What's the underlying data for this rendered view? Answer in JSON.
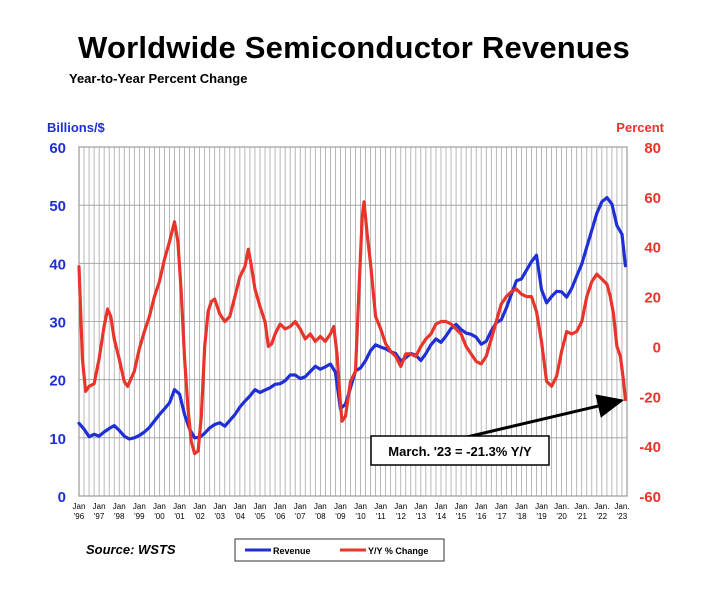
{
  "title": "Worldwide Semiconductor Revenues",
  "subtitle": "Year-to-Year Percent Change",
  "source": "Source: WSTS",
  "chart_data": {
    "type": "line",
    "colors": {
      "revenue": "#1f2fd6",
      "yoy": "#e8342a",
      "grid": "#9a9a9a",
      "annotation": "#000000"
    },
    "left_axis": {
      "label": "Billions/$",
      "min": 0,
      "max": 60,
      "step": 10,
      "ticks": [
        "0",
        "10",
        "20",
        "30",
        "40",
        "50",
        "60"
      ]
    },
    "right_axis": {
      "label": "Percent",
      "min": -60,
      "max": 80,
      "step": 20,
      "ticks": [
        "-60",
        "-40",
        "-20",
        "0",
        "20",
        "40",
        "60",
        "80"
      ]
    },
    "x_range": [
      1996,
      2023.25
    ],
    "x_ticks": [
      {
        "top": "Jan",
        "bottom": "'96",
        "x": 1996
      },
      {
        "top": "Jan",
        "bottom": "'97",
        "x": 1997
      },
      {
        "top": "Jan",
        "bottom": "'98",
        "x": 1998
      },
      {
        "top": "Jan",
        "bottom": "'99",
        "x": 1999
      },
      {
        "top": "Jan",
        "bottom": "'00",
        "x": 2000
      },
      {
        "top": "Jan",
        "bottom": "'01",
        "x": 2001
      },
      {
        "top": "Jan",
        "bottom": "'02",
        "x": 2002
      },
      {
        "top": "Jan",
        "bottom": "'03",
        "x": 2003
      },
      {
        "top": "Jan",
        "bottom": "'04",
        "x": 2004
      },
      {
        "top": "Jan",
        "bottom": "'05",
        "x": 2005
      },
      {
        "top": "Jan",
        "bottom": "'06",
        "x": 2006
      },
      {
        "top": "Jan",
        "bottom": "'07",
        "x": 2007
      },
      {
        "top": "Jan",
        "bottom": "'08",
        "x": 2008
      },
      {
        "top": "Jan",
        "bottom": "'09",
        "x": 2009
      },
      {
        "top": "Jan",
        "bottom": "'10",
        "x": 2010
      },
      {
        "top": "Jan",
        "bottom": "'11",
        "x": 2011
      },
      {
        "top": "Jan",
        "bottom": "'12",
        "x": 2012
      },
      {
        "top": "Jan",
        "bottom": "'13",
        "x": 2013
      },
      {
        "top": "Jan",
        "bottom": "'14",
        "x": 2014
      },
      {
        "top": "Jan",
        "bottom": "'15",
        "x": 2015
      },
      {
        "top": "Jan",
        "bottom": "'16",
        "x": 2016
      },
      {
        "top": "Jan",
        "bottom": "'17",
        "x": 2017
      },
      {
        "top": "Jan",
        "bottom": "'18",
        "x": 2018
      },
      {
        "top": "Jan",
        "bottom": "'19",
        "x": 2019
      },
      {
        "top": "Jan.",
        "bottom": "'20",
        "x": 2020
      },
      {
        "top": "Jan.",
        "bottom": "'21",
        "x": 2021
      },
      {
        "top": "Jan.",
        "bottom": "'22",
        "x": 2022
      },
      {
        "top": "Jan.",
        "bottom": "'23",
        "x": 2023
      }
    ],
    "series": [
      {
        "name": "Revenue",
        "axis": "left",
        "color": "#1f2fd6",
        "points": [
          [
            1996.0,
            12.5
          ],
          [
            1996.25,
            11.5
          ],
          [
            1996.5,
            10.2
          ],
          [
            1996.75,
            10.6
          ],
          [
            1997.0,
            10.3
          ],
          [
            1997.25,
            11.0
          ],
          [
            1997.5,
            11.6
          ],
          [
            1997.75,
            12.1
          ],
          [
            1998.0,
            11.3
          ],
          [
            1998.25,
            10.3
          ],
          [
            1998.5,
            9.8
          ],
          [
            1998.75,
            10.0
          ],
          [
            1999.0,
            10.4
          ],
          [
            1999.25,
            11.0
          ],
          [
            1999.5,
            11.8
          ],
          [
            1999.75,
            12.9
          ],
          [
            2000.0,
            14.0
          ],
          [
            2000.25,
            15.0
          ],
          [
            2000.5,
            16.0
          ],
          [
            2000.75,
            18.3
          ],
          [
            2001.0,
            17.5
          ],
          [
            2001.25,
            14.0
          ],
          [
            2001.5,
            11.5
          ],
          [
            2001.75,
            10.0
          ],
          [
            2002.0,
            10.1
          ],
          [
            2002.25,
            10.8
          ],
          [
            2002.5,
            11.7
          ],
          [
            2002.75,
            12.3
          ],
          [
            2003.0,
            12.6
          ],
          [
            2003.25,
            12.0
          ],
          [
            2003.5,
            13.0
          ],
          [
            2003.75,
            14.0
          ],
          [
            2004.0,
            15.3
          ],
          [
            2004.25,
            16.3
          ],
          [
            2004.5,
            17.2
          ],
          [
            2004.75,
            18.3
          ],
          [
            2005.0,
            17.8
          ],
          [
            2005.25,
            18.2
          ],
          [
            2005.5,
            18.6
          ],
          [
            2005.75,
            19.2
          ],
          [
            2006.0,
            19.3
          ],
          [
            2006.25,
            19.8
          ],
          [
            2006.5,
            20.8
          ],
          [
            2006.75,
            20.8
          ],
          [
            2007.0,
            20.2
          ],
          [
            2007.25,
            20.5
          ],
          [
            2007.5,
            21.4
          ],
          [
            2007.75,
            22.3
          ],
          [
            2008.0,
            21.8
          ],
          [
            2008.25,
            22.2
          ],
          [
            2008.5,
            22.7
          ],
          [
            2008.75,
            21.3
          ],
          [
            2009.0,
            15.0
          ],
          [
            2009.25,
            15.8
          ],
          [
            2009.5,
            18.6
          ],
          [
            2009.75,
            21.5
          ],
          [
            2010.0,
            22.0
          ],
          [
            2010.25,
            23.3
          ],
          [
            2010.5,
            25.0
          ],
          [
            2010.75,
            26.0
          ],
          [
            2011.0,
            25.6
          ],
          [
            2011.25,
            25.3
          ],
          [
            2011.5,
            24.8
          ],
          [
            2011.75,
            24.5
          ],
          [
            2012.0,
            23.2
          ],
          [
            2012.25,
            23.8
          ],
          [
            2012.5,
            24.5
          ],
          [
            2012.75,
            24.2
          ],
          [
            2013.0,
            23.3
          ],
          [
            2013.25,
            24.5
          ],
          [
            2013.5,
            26.0
          ],
          [
            2013.75,
            27.0
          ],
          [
            2014.0,
            26.4
          ],
          [
            2014.25,
            27.5
          ],
          [
            2014.5,
            28.8
          ],
          [
            2014.75,
            29.5
          ],
          [
            2015.0,
            28.6
          ],
          [
            2015.25,
            28.0
          ],
          [
            2015.5,
            27.8
          ],
          [
            2015.75,
            27.3
          ],
          [
            2016.0,
            26.1
          ],
          [
            2016.25,
            26.6
          ],
          [
            2016.5,
            28.4
          ],
          [
            2016.75,
            29.8
          ],
          [
            2017.0,
            30.3
          ],
          [
            2017.25,
            32.3
          ],
          [
            2017.5,
            34.7
          ],
          [
            2017.75,
            37.0
          ],
          [
            2018.0,
            37.3
          ],
          [
            2018.25,
            38.8
          ],
          [
            2018.5,
            40.3
          ],
          [
            2018.75,
            41.4
          ],
          [
            2019.0,
            35.5
          ],
          [
            2019.25,
            33.2
          ],
          [
            2019.5,
            34.3
          ],
          [
            2019.75,
            35.2
          ],
          [
            2020.0,
            35.1
          ],
          [
            2020.25,
            34.2
          ],
          [
            2020.5,
            35.7
          ],
          [
            2020.75,
            37.8
          ],
          [
            2021.0,
            39.9
          ],
          [
            2021.25,
            42.8
          ],
          [
            2021.5,
            45.7
          ],
          [
            2021.75,
            48.6
          ],
          [
            2022.0,
            50.6
          ],
          [
            2022.25,
            51.3
          ],
          [
            2022.5,
            50.2
          ],
          [
            2022.75,
            46.5
          ],
          [
            2023.0,
            45.0
          ],
          [
            2023.17,
            39.6
          ]
        ]
      },
      {
        "name": "Y/Y % Change",
        "axis": "right",
        "color": "#e8342a",
        "points": [
          [
            1996.0,
            32.0
          ],
          [
            1996.17,
            -5.0
          ],
          [
            1996.33,
            -18.0
          ],
          [
            1996.5,
            -16.0
          ],
          [
            1996.75,
            -15.0
          ],
          [
            1997.0,
            -5.0
          ],
          [
            1997.25,
            8.0
          ],
          [
            1997.42,
            15.0
          ],
          [
            1997.58,
            12.0
          ],
          [
            1997.75,
            3.0
          ],
          [
            1998.0,
            -5.0
          ],
          [
            1998.25,
            -14.0
          ],
          [
            1998.42,
            -16.0
          ],
          [
            1998.75,
            -10.0
          ],
          [
            1999.0,
            -1.0
          ],
          [
            1999.25,
            6.0
          ],
          [
            1999.5,
            12.0
          ],
          [
            1999.75,
            20.0
          ],
          [
            2000.0,
            26.0
          ],
          [
            2000.25,
            35.0
          ],
          [
            2000.5,
            42.0
          ],
          [
            2000.75,
            50.0
          ],
          [
            2000.92,
            42.0
          ],
          [
            2001.08,
            22.0
          ],
          [
            2001.25,
            -5.0
          ],
          [
            2001.42,
            -25.0
          ],
          [
            2001.58,
            -38.0
          ],
          [
            2001.75,
            -43.0
          ],
          [
            2001.92,
            -42.0
          ],
          [
            2002.08,
            -28.0
          ],
          [
            2002.25,
            0.0
          ],
          [
            2002.42,
            14.0
          ],
          [
            2002.58,
            18.0
          ],
          [
            2002.75,
            19.0
          ],
          [
            2003.0,
            13.0
          ],
          [
            2003.25,
            10.0
          ],
          [
            2003.5,
            12.0
          ],
          [
            2003.75,
            20.0
          ],
          [
            2004.0,
            28.0
          ],
          [
            2004.25,
            32.0
          ],
          [
            2004.42,
            39.0
          ],
          [
            2004.58,
            32.0
          ],
          [
            2004.75,
            23.0
          ],
          [
            2005.0,
            16.0
          ],
          [
            2005.25,
            10.0
          ],
          [
            2005.42,
            0.0
          ],
          [
            2005.58,
            1.0
          ],
          [
            2005.75,
            5.0
          ],
          [
            2006.0,
            9.0
          ],
          [
            2006.25,
            7.0
          ],
          [
            2006.5,
            8.0
          ],
          [
            2006.75,
            10.0
          ],
          [
            2007.0,
            7.0
          ],
          [
            2007.25,
            3.0
          ],
          [
            2007.5,
            5.0
          ],
          [
            2007.75,
            2.0
          ],
          [
            2008.0,
            4.0
          ],
          [
            2008.25,
            2.0
          ],
          [
            2008.5,
            5.0
          ],
          [
            2008.67,
            8.0
          ],
          [
            2008.83,
            -3.0
          ],
          [
            2009.0,
            -23.0
          ],
          [
            2009.08,
            -30.0
          ],
          [
            2009.25,
            -28.0
          ],
          [
            2009.5,
            -14.0
          ],
          [
            2009.75,
            -10.0
          ],
          [
            2009.92,
            22.0
          ],
          [
            2010.08,
            52.0
          ],
          [
            2010.17,
            58.0
          ],
          [
            2010.33,
            45.0
          ],
          [
            2010.5,
            33.0
          ],
          [
            2010.75,
            12.0
          ],
          [
            2011.0,
            7.0
          ],
          [
            2011.25,
            1.0
          ],
          [
            2011.5,
            -2.0
          ],
          [
            2011.75,
            -4.0
          ],
          [
            2012.0,
            -8.0
          ],
          [
            2012.25,
            -3.0
          ],
          [
            2012.5,
            -3.0
          ],
          [
            2012.75,
            -4.0
          ],
          [
            2013.0,
            0.0
          ],
          [
            2013.25,
            3.0
          ],
          [
            2013.5,
            5.0
          ],
          [
            2013.75,
            9.0
          ],
          [
            2014.0,
            10.0
          ],
          [
            2014.25,
            10.0
          ],
          [
            2014.5,
            9.0
          ],
          [
            2014.75,
            7.0
          ],
          [
            2015.0,
            5.0
          ],
          [
            2015.25,
            0.0
          ],
          [
            2015.5,
            -3.0
          ],
          [
            2015.75,
            -6.0
          ],
          [
            2016.0,
            -7.0
          ],
          [
            2016.25,
            -4.0
          ],
          [
            2016.5,
            3.0
          ],
          [
            2016.75,
            10.0
          ],
          [
            2017.0,
            17.0
          ],
          [
            2017.25,
            20.0
          ],
          [
            2017.5,
            22.0
          ],
          [
            2017.75,
            23.0
          ],
          [
            2018.0,
            21.0
          ],
          [
            2018.25,
            20.0
          ],
          [
            2018.5,
            20.0
          ],
          [
            2018.75,
            14.0
          ],
          [
            2019.0,
            2.0
          ],
          [
            2019.25,
            -14.0
          ],
          [
            2019.5,
            -16.0
          ],
          [
            2019.75,
            -12.0
          ],
          [
            2020.0,
            -2.0
          ],
          [
            2020.25,
            6.0
          ],
          [
            2020.5,
            5.0
          ],
          [
            2020.75,
            6.0
          ],
          [
            2021.0,
            10.0
          ],
          [
            2021.25,
            20.0
          ],
          [
            2021.5,
            26.0
          ],
          [
            2021.75,
            29.0
          ],
          [
            2022.0,
            27.0
          ],
          [
            2022.25,
            25.0
          ],
          [
            2022.42,
            20.0
          ],
          [
            2022.58,
            13.0
          ],
          [
            2022.75,
            0.0
          ],
          [
            2022.92,
            -4.0
          ],
          [
            2023.08,
            -14.0
          ],
          [
            2023.17,
            -21.3
          ]
        ]
      }
    ],
    "annotation": {
      "text": "March. '23 = -21.3% Y/Y",
      "x": 2023.17,
      "y": -21.3,
      "axis": "right"
    },
    "legend": {
      "position": "bottom-center",
      "items": [
        {
          "name": "Revenue",
          "color": "#1f2fd6"
        },
        {
          "name": "Y/Y % Change",
          "color": "#e8342a"
        }
      ]
    }
  }
}
